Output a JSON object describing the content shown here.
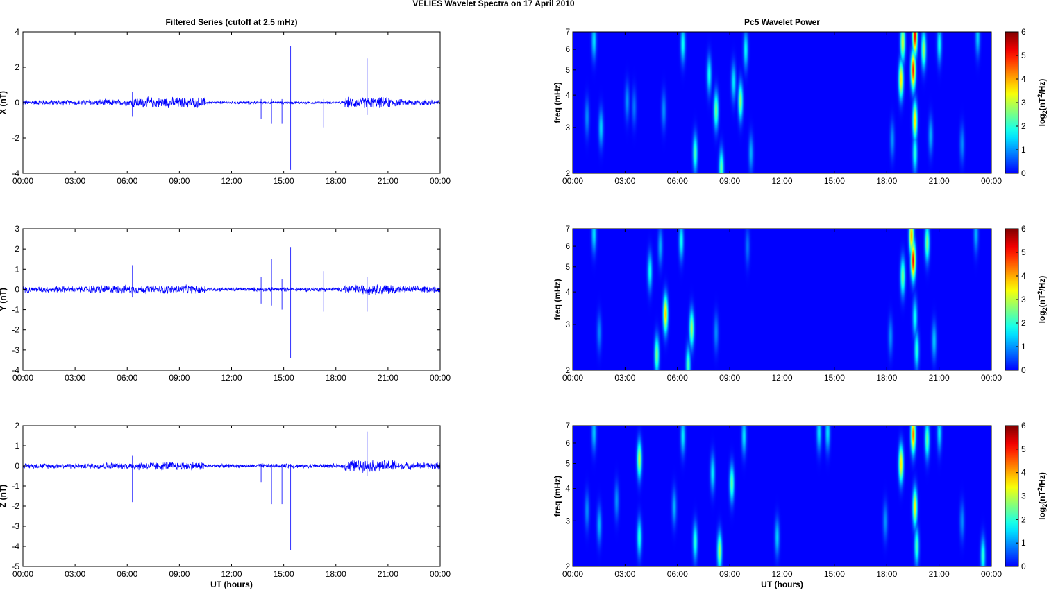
{
  "figure": {
    "title": "VELIES Wavelet Spectra on 17 April     2010"
  },
  "colors": {
    "trace": "#0000ff",
    "axis": "#000000",
    "tick_mark": "#000000"
  },
  "chart_data": [
    {
      "id": "x-series",
      "type": "line",
      "title": "Filtered Series (cutoff at 2.5 mHz)",
      "xlabel": "",
      "ylabel": "X (nT)",
      "xlim": [
        0,
        24
      ],
      "ylim": [
        -4,
        4
      ],
      "xticks": [
        0,
        3,
        6,
        9,
        12,
        15,
        18,
        21,
        24
      ],
      "xtick_labels": [
        "00:00",
        "03:00",
        "06:00",
        "09:00",
        "12:00",
        "15:00",
        "18:00",
        "21:00",
        "00:00"
      ],
      "yticks": [
        -4,
        -2,
        0,
        2,
        4
      ],
      "ytick_labels": [
        "-4",
        "-2",
        "0",
        "2",
        "4"
      ],
      "noise_segments": [
        {
          "from": 0,
          "to": 3.8,
          "amp": 0.18
        },
        {
          "from": 3.8,
          "to": 6.2,
          "amp": 0.22
        },
        {
          "from": 6.2,
          "to": 10.5,
          "amp": 0.35
        },
        {
          "from": 10.5,
          "to": 13.5,
          "amp": 0.1
        },
        {
          "from": 13.5,
          "to": 18.5,
          "amp": 0.08
        },
        {
          "from": 18.5,
          "to": 21.5,
          "amp": 0.35
        },
        {
          "from": 21.5,
          "to": 24,
          "amp": 0.22
        }
      ],
      "spikes": [
        {
          "t": 3.85,
          "max": 1.2,
          "min": -0.9
        },
        {
          "t": 6.3,
          "max": 0.6,
          "min": -0.8
        },
        {
          "t": 13.7,
          "max": 0.2,
          "min": -0.9
        },
        {
          "t": 14.3,
          "max": 0.2,
          "min": -1.2
        },
        {
          "t": 14.9,
          "max": 0.2,
          "min": -1.2
        },
        {
          "t": 15.4,
          "max": 3.2,
          "min": -3.8
        },
        {
          "t": 17.3,
          "max": 0.2,
          "min": -1.4
        },
        {
          "t": 19.8,
          "max": 2.5,
          "min": -0.7
        }
      ]
    },
    {
      "id": "y-series",
      "type": "line",
      "title": "",
      "xlabel": "",
      "ylabel": "Y (nT)",
      "xlim": [
        0,
        24
      ],
      "ylim": [
        -4,
        3
      ],
      "xticks": [
        0,
        3,
        6,
        9,
        12,
        15,
        18,
        21,
        24
      ],
      "xtick_labels": [
        "00:00",
        "03:00",
        "06:00",
        "09:00",
        "12:00",
        "15:00",
        "18:00",
        "21:00",
        "00:00"
      ],
      "yticks": [
        -4,
        -3,
        -2,
        -1,
        0,
        1,
        2,
        3
      ],
      "ytick_labels": [
        "-4",
        "-3",
        "-2",
        "-1",
        "0",
        "1",
        "2",
        "3"
      ],
      "noise_segments": [
        {
          "from": 0,
          "to": 3.8,
          "amp": 0.18
        },
        {
          "from": 3.8,
          "to": 6.2,
          "amp": 0.25
        },
        {
          "from": 6.2,
          "to": 10.5,
          "amp": 0.25
        },
        {
          "from": 10.5,
          "to": 13.5,
          "amp": 0.12
        },
        {
          "from": 13.5,
          "to": 18.5,
          "amp": 0.12
        },
        {
          "from": 18.5,
          "to": 21.5,
          "amp": 0.3
        },
        {
          "from": 21.5,
          "to": 24,
          "amp": 0.2
        }
      ],
      "spikes": [
        {
          "t": 3.85,
          "max": 2.0,
          "min": -1.6
        },
        {
          "t": 6.3,
          "max": 1.2,
          "min": -0.4
        },
        {
          "t": 13.7,
          "max": 0.6,
          "min": -0.7
        },
        {
          "t": 14.3,
          "max": 1.5,
          "min": -0.8
        },
        {
          "t": 14.9,
          "max": 0.5,
          "min": -1.0
        },
        {
          "t": 15.4,
          "max": 2.1,
          "min": -3.4
        },
        {
          "t": 17.3,
          "max": 0.9,
          "min": -1.1
        },
        {
          "t": 19.8,
          "max": 0.6,
          "min": -1.1
        }
      ]
    },
    {
      "id": "z-series",
      "type": "line",
      "title": "",
      "xlabel": "UT (hours)",
      "ylabel": "Z (nT)",
      "xlim": [
        0,
        24
      ],
      "ylim": [
        -5,
        2
      ],
      "xticks": [
        0,
        3,
        6,
        9,
        12,
        15,
        18,
        21,
        24
      ],
      "xtick_labels": [
        "00:00",
        "03:00",
        "06:00",
        "09:00",
        "12:00",
        "15:00",
        "18:00",
        "21:00",
        "00:00"
      ],
      "yticks": [
        -5,
        -4,
        -3,
        -2,
        -1,
        0,
        1,
        2
      ],
      "ytick_labels": [
        "-5",
        "-4",
        "-3",
        "-2",
        "-1",
        "0",
        "1",
        "2"
      ],
      "noise_segments": [
        {
          "from": 0,
          "to": 3.8,
          "amp": 0.15
        },
        {
          "from": 3.8,
          "to": 6.2,
          "amp": 0.2
        },
        {
          "from": 6.2,
          "to": 10.5,
          "amp": 0.25
        },
        {
          "from": 10.5,
          "to": 13.5,
          "amp": 0.1
        },
        {
          "from": 13.5,
          "to": 18.5,
          "amp": 0.12
        },
        {
          "from": 18.5,
          "to": 21.5,
          "amp": 0.35
        },
        {
          "from": 21.5,
          "to": 24,
          "amp": 0.2
        }
      ],
      "spikes": [
        {
          "t": 3.85,
          "max": 0.3,
          "min": -2.8
        },
        {
          "t": 6.3,
          "max": 0.5,
          "min": -1.8
        },
        {
          "t": 13.7,
          "max": 0.1,
          "min": -0.8
        },
        {
          "t": 14.3,
          "max": 0.1,
          "min": -1.9
        },
        {
          "t": 14.9,
          "max": 0.1,
          "min": -1.9
        },
        {
          "t": 15.4,
          "max": 0.1,
          "min": -4.2
        },
        {
          "t": 19.8,
          "max": 1.7,
          "min": -0.5
        }
      ]
    },
    {
      "id": "x-wavelet",
      "type": "heatmap",
      "title": "Pc5 Wavelet Power",
      "xlabel": "",
      "ylabel": "freq (mHz)",
      "xlim": [
        0,
        24
      ],
      "ylim": [
        2,
        7
      ],
      "yscale": "log",
      "xticks": [
        0,
        3,
        6,
        9,
        12,
        15,
        18,
        21,
        24
      ],
      "xtick_labels": [
        "00:00",
        "03:00",
        "06:00",
        "09:00",
        "12:00",
        "15:00",
        "18:00",
        "21:00",
        "00:00"
      ],
      "yticks": [
        2,
        3,
        4,
        5,
        6,
        7
      ],
      "ytick_labels": [
        "2",
        "3",
        "4",
        "5",
        "6",
        "7"
      ],
      "colorbar": {
        "label": "log2(nT^2/Hz)",
        "ticks": [
          0,
          1,
          2,
          3,
          4,
          5,
          6
        ],
        "range": [
          0,
          6
        ]
      },
      "blobs": [
        {
          "t": 1.2,
          "f": 6.5,
          "power": 1.6
        },
        {
          "t": 0.8,
          "f": 3.3,
          "power": 1.0
        },
        {
          "t": 1.6,
          "f": 3.0,
          "power": 1.5
        },
        {
          "t": 3.1,
          "f": 3.8,
          "power": 1.0
        },
        {
          "t": 3.5,
          "f": 3.6,
          "power": 0.8
        },
        {
          "t": 5.2,
          "f": 3.5,
          "power": 1.0
        },
        {
          "t": 6.3,
          "f": 6.3,
          "power": 1.8
        },
        {
          "t": 7.0,
          "f": 2.4,
          "power": 2.2
        },
        {
          "t": 7.8,
          "f": 4.8,
          "power": 1.8
        },
        {
          "t": 8.2,
          "f": 3.5,
          "power": 2.6
        },
        {
          "t": 8.5,
          "f": 2.1,
          "power": 2.4
        },
        {
          "t": 9.2,
          "f": 4.5,
          "power": 1.6
        },
        {
          "t": 9.6,
          "f": 3.8,
          "power": 2.7
        },
        {
          "t": 9.9,
          "f": 6.0,
          "power": 1.8
        },
        {
          "t": 10.2,
          "f": 2.4,
          "power": 1.2
        },
        {
          "t": 18.3,
          "f": 2.7,
          "power": 1.0
        },
        {
          "t": 18.8,
          "f": 4.6,
          "power": 3.6
        },
        {
          "t": 18.9,
          "f": 6.4,
          "power": 3.2
        },
        {
          "t": 19.5,
          "f": 5.0,
          "power": 5.0
        },
        {
          "t": 19.6,
          "f": 6.8,
          "power": 5.3
        },
        {
          "t": 19.6,
          "f": 3.2,
          "power": 3.6
        },
        {
          "t": 19.6,
          "f": 2.4,
          "power": 2.0
        },
        {
          "t": 20.1,
          "f": 6.0,
          "power": 2.8
        },
        {
          "t": 20.5,
          "f": 2.8,
          "power": 1.2
        },
        {
          "t": 21.0,
          "f": 6.3,
          "power": 1.8
        },
        {
          "t": 22.3,
          "f": 2.6,
          "power": 1.0
        },
        {
          "t": 23.2,
          "f": 6.7,
          "power": 1.4
        }
      ]
    },
    {
      "id": "y-wavelet",
      "type": "heatmap",
      "title": "",
      "xlabel": "",
      "ylabel": "freq (mHz)",
      "xlim": [
        0,
        24
      ],
      "ylim": [
        2,
        7
      ],
      "yscale": "log",
      "xticks": [
        0,
        3,
        6,
        9,
        12,
        15,
        18,
        21,
        24
      ],
      "xtick_labels": [
        "00:00",
        "03:00",
        "06:00",
        "09:00",
        "12:00",
        "15:00",
        "18:00",
        "21:00",
        "00:00"
      ],
      "yticks": [
        2,
        3,
        4,
        5,
        6,
        7
      ],
      "ytick_labels": [
        "2",
        "3",
        "4",
        "5",
        "6",
        "7"
      ],
      "colorbar": {
        "label": "log2(nT^2/Hz)",
        "ticks": [
          0,
          1,
          2,
          3,
          4,
          5,
          6
        ],
        "range": [
          0,
          6
        ]
      },
      "blobs": [
        {
          "t": 1.2,
          "f": 6.7,
          "power": 1.6
        },
        {
          "t": 1.5,
          "f": 2.8,
          "power": 0.9
        },
        {
          "t": 4.4,
          "f": 4.8,
          "power": 1.8
        },
        {
          "t": 4.8,
          "f": 2.3,
          "power": 2.6
        },
        {
          "t": 5.3,
          "f": 3.3,
          "power": 3.8
        },
        {
          "t": 5.0,
          "f": 6.0,
          "power": 1.2
        },
        {
          "t": 6.2,
          "f": 6.3,
          "power": 1.8
        },
        {
          "t": 6.8,
          "f": 2.9,
          "power": 2.8
        },
        {
          "t": 6.6,
          "f": 2.1,
          "power": 2.2
        },
        {
          "t": 8.2,
          "f": 2.8,
          "power": 1.0
        },
        {
          "t": 10.0,
          "f": 6.0,
          "power": 0.8
        },
        {
          "t": 18.2,
          "f": 2.7,
          "power": 1.0
        },
        {
          "t": 18.9,
          "f": 4.6,
          "power": 2.6
        },
        {
          "t": 19.5,
          "f": 5.3,
          "power": 5.2
        },
        {
          "t": 19.4,
          "f": 6.6,
          "power": 4.0
        },
        {
          "t": 19.7,
          "f": 2.4,
          "power": 2.0
        },
        {
          "t": 19.6,
          "f": 3.2,
          "power": 1.8
        },
        {
          "t": 20.3,
          "f": 6.2,
          "power": 2.6
        },
        {
          "t": 20.7,
          "f": 2.6,
          "power": 1.4
        },
        {
          "t": 23.1,
          "f": 6.7,
          "power": 1.2
        }
      ]
    },
    {
      "id": "z-wavelet",
      "type": "heatmap",
      "title": "",
      "xlabel": "UT (hours)",
      "ylabel": "freq (mHz)",
      "xlim": [
        0,
        24
      ],
      "ylim": [
        2,
        7
      ],
      "yscale": "log",
      "xticks": [
        0,
        3,
        6,
        9,
        12,
        15,
        18,
        21,
        24
      ],
      "xtick_labels": [
        "00:00",
        "03:00",
        "06:00",
        "09:00",
        "12:00",
        "15:00",
        "18:00",
        "21:00",
        "00:00"
      ],
      "yticks": [
        2,
        3,
        4,
        5,
        6,
        7
      ],
      "ytick_labels": [
        "2",
        "3",
        "4",
        "5",
        "6",
        "7"
      ],
      "colorbar": {
        "label": "log2(nT^2/Hz)",
        "ticks": [
          0,
          1,
          2,
          3,
          4,
          5,
          6
        ],
        "range": [
          0,
          6
        ]
      },
      "blobs": [
        {
          "t": 1.2,
          "f": 6.6,
          "power": 1.4
        },
        {
          "t": 0.8,
          "f": 3.3,
          "power": 1.0
        },
        {
          "t": 1.5,
          "f": 2.9,
          "power": 1.2
        },
        {
          "t": 2.5,
          "f": 3.6,
          "power": 1.0
        },
        {
          "t": 3.8,
          "f": 5.2,
          "power": 3.0
        },
        {
          "t": 3.8,
          "f": 2.6,
          "power": 2.0
        },
        {
          "t": 5.8,
          "f": 3.4,
          "power": 1.2
        },
        {
          "t": 6.3,
          "f": 6.4,
          "power": 1.6
        },
        {
          "t": 7.0,
          "f": 2.5,
          "power": 2.0
        },
        {
          "t": 8.0,
          "f": 4.6,
          "power": 1.6
        },
        {
          "t": 8.4,
          "f": 2.3,
          "power": 2.8
        },
        {
          "t": 9.1,
          "f": 4.2,
          "power": 2.4
        },
        {
          "t": 9.8,
          "f": 6.4,
          "power": 1.6
        },
        {
          "t": 11.7,
          "f": 2.6,
          "power": 1.4
        },
        {
          "t": 14.1,
          "f": 6.6,
          "power": 1.6
        },
        {
          "t": 14.6,
          "f": 6.6,
          "power": 1.6
        },
        {
          "t": 17.9,
          "f": 3.0,
          "power": 1.0
        },
        {
          "t": 18.8,
          "f": 5.0,
          "power": 3.6
        },
        {
          "t": 19.5,
          "f": 6.5,
          "power": 4.4
        },
        {
          "t": 19.6,
          "f": 3.4,
          "power": 3.4
        },
        {
          "t": 19.7,
          "f": 2.4,
          "power": 2.2
        },
        {
          "t": 20.3,
          "f": 6.2,
          "power": 2.4
        },
        {
          "t": 21.0,
          "f": 6.6,
          "power": 1.6
        },
        {
          "t": 22.3,
          "f": 3.0,
          "power": 1.0
        },
        {
          "t": 23.5,
          "f": 2.2,
          "power": 2.0
        }
      ]
    }
  ]
}
